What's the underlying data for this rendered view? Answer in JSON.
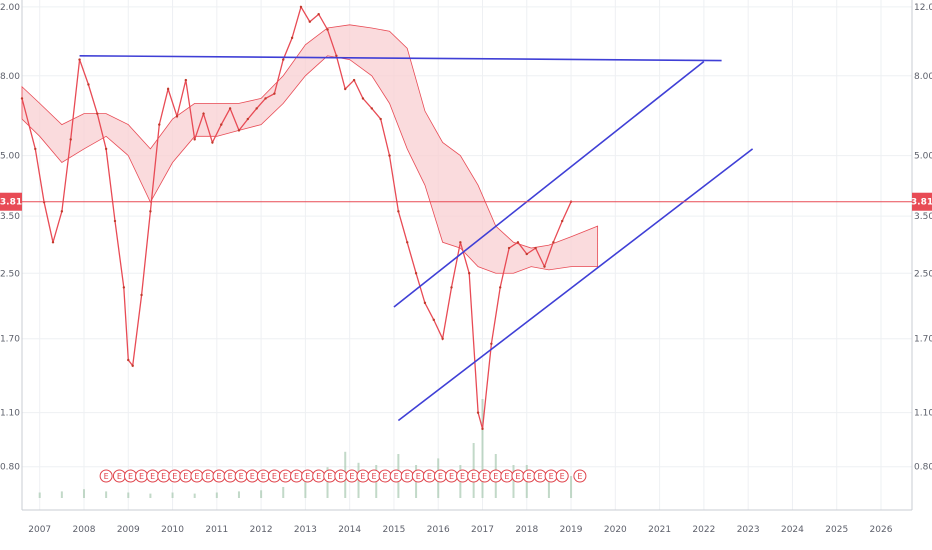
{
  "colors": {
    "price_line": "#e84b55",
    "trendline": "#3f3fd6",
    "cloud_bull": "#cdeccd",
    "cloud_bear": "#f8cfd2",
    "candle_up": "#1f9d55",
    "candle_down": "#c0392b",
    "grid": "#eef0f3",
    "earnings": "#e0434b",
    "volume": "#a8c9b0"
  },
  "chart_data": {
    "type": "line",
    "scale": "log",
    "ylim": [
      0.62,
      12.5
    ],
    "xlim": [
      2006.6,
      2026.7
    ],
    "x_ticks": [
      "2007",
      "2008",
      "2009",
      "2010",
      "2011",
      "2012",
      "2013",
      "2014",
      "2015",
      "2016",
      "2017",
      "2018",
      "2019",
      "2020",
      "2021",
      "2022",
      "2023",
      "2024",
      "2025",
      "2026"
    ],
    "y_ticks": [
      {
        "value": 12.0,
        "label": "12.00"
      },
      {
        "value": 8.0,
        "label": "8.00"
      },
      {
        "value": 5.0,
        "label": "5.00"
      },
      {
        "value": 3.5,
        "label": "3.50"
      },
      {
        "value": 2.5,
        "label": "2.50"
      },
      {
        "value": 1.7,
        "label": "1.70"
      },
      {
        "value": 1.1,
        "label": "1.10"
      },
      {
        "value": 0.8,
        "label": "0.80"
      }
    ],
    "last_price": {
      "value": 3.81,
      "label": "3.81"
    },
    "series": [
      {
        "points": [
          [
            2006.6,
            7.0
          ],
          [
            2006.9,
            5.2
          ],
          [
            2007.1,
            3.8
          ],
          [
            2007.3,
            3.0
          ],
          [
            2007.5,
            3.6
          ],
          [
            2007.7,
            5.5
          ],
          [
            2007.9,
            8.8
          ],
          [
            2008.1,
            7.6
          ],
          [
            2008.3,
            6.4
          ],
          [
            2008.5,
            5.2
          ],
          [
            2008.7,
            3.4
          ],
          [
            2008.9,
            2.3
          ],
          [
            2009.0,
            1.5
          ],
          [
            2009.1,
            1.45
          ],
          [
            2009.3,
            2.2
          ],
          [
            2009.5,
            3.6
          ],
          [
            2009.7,
            6.0
          ],
          [
            2009.9,
            7.4
          ],
          [
            2010.1,
            6.3
          ],
          [
            2010.3,
            7.8
          ],
          [
            2010.5,
            5.5
          ],
          [
            2010.7,
            6.4
          ],
          [
            2010.9,
            5.4
          ],
          [
            2011.1,
            6.0
          ],
          [
            2011.3,
            6.6
          ],
          [
            2011.5,
            5.8
          ],
          [
            2011.7,
            6.2
          ],
          [
            2011.9,
            6.6
          ],
          [
            2012.1,
            7.0
          ],
          [
            2012.3,
            7.2
          ],
          [
            2012.5,
            8.8
          ],
          [
            2012.7,
            10.0
          ],
          [
            2012.9,
            12.0
          ],
          [
            2013.1,
            11.0
          ],
          [
            2013.3,
            11.5
          ],
          [
            2013.5,
            10.5
          ],
          [
            2013.7,
            9.0
          ],
          [
            2013.9,
            7.4
          ],
          [
            2014.1,
            7.8
          ],
          [
            2014.3,
            7.0
          ],
          [
            2014.5,
            6.6
          ],
          [
            2014.7,
            6.2
          ],
          [
            2014.9,
            5.0
          ],
          [
            2015.1,
            3.6
          ],
          [
            2015.3,
            3.0
          ],
          [
            2015.5,
            2.5
          ],
          [
            2015.7,
            2.1
          ],
          [
            2015.9,
            1.9
          ],
          [
            2016.1,
            1.7
          ],
          [
            2016.3,
            2.3
          ],
          [
            2016.5,
            3.0
          ],
          [
            2016.7,
            2.5
          ],
          [
            2016.9,
            1.1
          ],
          [
            2017.0,
            1.0
          ],
          [
            2017.2,
            1.65
          ],
          [
            2017.4,
            2.3
          ],
          [
            2017.6,
            2.9
          ],
          [
            2017.8,
            3.0
          ],
          [
            2018.0,
            2.8
          ],
          [
            2018.2,
            2.9
          ],
          [
            2018.4,
            2.6
          ],
          [
            2018.6,
            3.0
          ],
          [
            2018.8,
            3.4
          ],
          [
            2019.0,
            3.81
          ]
        ]
      }
    ],
    "trendlines": [
      {
        "from": [
          2007.9,
          9.0
        ],
        "to": [
          2022.4,
          8.75
        ]
      },
      {
        "from": [
          2015.0,
          2.05
        ],
        "to": [
          2022.0,
          8.7
        ]
      },
      {
        "from": [
          2015.1,
          1.05
        ],
        "to": [
          2023.1,
          5.2
        ]
      }
    ],
    "cloud": [
      [
        2006.6,
        6.2,
        7.5
      ],
      [
        2007.0,
        5.6,
        6.8
      ],
      [
        2007.5,
        4.8,
        6.0
      ],
      [
        2008.0,
        5.2,
        6.4
      ],
      [
        2008.5,
        5.6,
        6.4
      ],
      [
        2009.0,
        5.0,
        6.0
      ],
      [
        2009.5,
        3.8,
        5.2
      ],
      [
        2010.0,
        4.8,
        6.2
      ],
      [
        2010.5,
        5.6,
        6.8
      ],
      [
        2011.0,
        5.6,
        6.8
      ],
      [
        2011.5,
        5.8,
        6.8
      ],
      [
        2012.0,
        6.0,
        7.0
      ],
      [
        2012.5,
        6.8,
        8.0
      ],
      [
        2013.0,
        8.0,
        9.6
      ],
      [
        2013.5,
        9.0,
        10.6
      ],
      [
        2014.0,
        8.8,
        10.8
      ],
      [
        2014.5,
        8.0,
        10.6
      ],
      [
        2014.9,
        6.8,
        10.4
      ],
      [
        2015.3,
        5.2,
        9.4
      ],
      [
        2015.7,
        4.2,
        6.5
      ],
      [
        2016.1,
        3.0,
        5.4
      ],
      [
        2016.5,
        2.9,
        5.0
      ],
      [
        2016.9,
        2.6,
        4.2
      ],
      [
        2017.3,
        2.5,
        3.3
      ],
      [
        2017.7,
        2.5,
        3.0
      ],
      [
        2018.1,
        2.6,
        2.9
      ],
      [
        2018.5,
        2.55,
        2.95
      ],
      [
        2019.0,
        2.6,
        3.1
      ],
      [
        2019.6,
        2.6,
        3.3
      ]
    ],
    "volume_bars": [
      [
        2007.0,
        0.05
      ],
      [
        2007.5,
        0.06
      ],
      [
        2008.0,
        0.08
      ],
      [
        2008.5,
        0.06
      ],
      [
        2009.0,
        0.05
      ],
      [
        2009.5,
        0.04
      ],
      [
        2010.0,
        0.05
      ],
      [
        2010.5,
        0.04
      ],
      [
        2011.0,
        0.05
      ],
      [
        2011.5,
        0.06
      ],
      [
        2012.0,
        0.07
      ],
      [
        2012.5,
        0.1
      ],
      [
        2013.0,
        0.18
      ],
      [
        2013.5,
        0.28
      ],
      [
        2013.9,
        0.42
      ],
      [
        2014.2,
        0.32
      ],
      [
        2014.6,
        0.3
      ],
      [
        2015.1,
        0.4
      ],
      [
        2015.5,
        0.3
      ],
      [
        2016.0,
        0.36
      ],
      [
        2016.5,
        0.3
      ],
      [
        2016.8,
        0.5
      ],
      [
        2017.0,
        0.9
      ],
      [
        2017.3,
        0.4
      ],
      [
        2017.7,
        0.3
      ],
      [
        2018.0,
        0.3
      ],
      [
        2018.5,
        0.25
      ],
      [
        2019.0,
        0.2
      ]
    ],
    "earnings_markers": [
      2008.5,
      2008.8,
      2009.05,
      2009.3,
      2009.55,
      2009.8,
      2010.05,
      2010.3,
      2010.55,
      2010.8,
      2011.05,
      2011.3,
      2011.55,
      2011.8,
      2012.05,
      2012.3,
      2012.55,
      2012.8,
      2013.05,
      2013.3,
      2013.55,
      2013.8,
      2014.05,
      2014.3,
      2014.55,
      2014.8,
      2015.05,
      2015.3,
      2015.55,
      2015.8,
      2016.05,
      2016.3,
      2016.55,
      2016.8,
      2017.05,
      2017.3,
      2017.55,
      2017.8,
      2018.05,
      2018.3,
      2018.55,
      2018.8,
      2019.2
    ],
    "earnings_label": "E"
  }
}
